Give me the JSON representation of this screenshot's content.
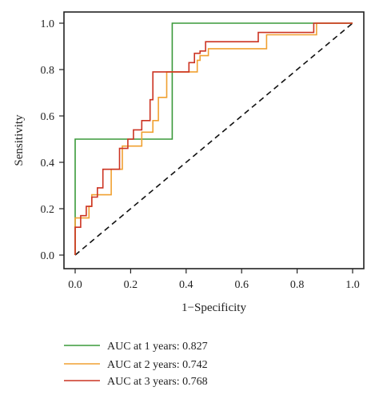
{
  "chart_data": {
    "type": "line",
    "title": "",
    "xlabel": "1−Specificity",
    "ylabel": "Sensitivity",
    "xlim": [
      0.0,
      1.0
    ],
    "ylim": [
      0.0,
      1.0
    ],
    "x_ticks": [
      "0.0",
      "0.2",
      "0.4",
      "0.6",
      "0.8",
      "1.0"
    ],
    "y_ticks": [
      "0.0",
      "0.2",
      "0.4",
      "0.6",
      "0.8",
      "1.0"
    ],
    "grid": false,
    "legend_position": "bottom",
    "reference_line": {
      "style": "dashed",
      "color": "#111111",
      "from": [
        0,
        0
      ],
      "to": [
        1,
        1
      ]
    },
    "series": [
      {
        "name": "AUC at 1 years: 0.827",
        "color": "#3a9a3a",
        "x": [
          0.0,
          0.0,
          0.35,
          0.35,
          1.0
        ],
        "y": [
          0.0,
          0.5,
          0.5,
          1.0,
          1.0
        ]
      },
      {
        "name": "AUC at 2 years: 0.742",
        "color": "#f0a030",
        "x": [
          0.0,
          0.0,
          0.05,
          0.05,
          0.06,
          0.06,
          0.13,
          0.13,
          0.17,
          0.17,
          0.24,
          0.24,
          0.28,
          0.28,
          0.3,
          0.3,
          0.33,
          0.33,
          0.44,
          0.44,
          0.45,
          0.45,
          0.48,
          0.48,
          0.69,
          0.69,
          0.87,
          0.87,
          1.0
        ],
        "y": [
          0.0,
          0.16,
          0.16,
          0.21,
          0.21,
          0.26,
          0.26,
          0.37,
          0.37,
          0.47,
          0.47,
          0.53,
          0.53,
          0.58,
          0.58,
          0.68,
          0.68,
          0.79,
          0.79,
          0.84,
          0.84,
          0.86,
          0.86,
          0.89,
          0.89,
          0.95,
          0.95,
          1.0,
          1.0
        ]
      },
      {
        "name": "AUC at 3 years: 0.768",
        "color": "#cc3322",
        "x": [
          0.0,
          0.0,
          0.02,
          0.02,
          0.04,
          0.04,
          0.06,
          0.06,
          0.08,
          0.08,
          0.1,
          0.1,
          0.16,
          0.16,
          0.19,
          0.19,
          0.21,
          0.21,
          0.24,
          0.24,
          0.27,
          0.27,
          0.28,
          0.28,
          0.41,
          0.41,
          0.43,
          0.43,
          0.45,
          0.45,
          0.47,
          0.47,
          0.66,
          0.66,
          0.86,
          0.86,
          1.0
        ],
        "y": [
          0.0,
          0.12,
          0.12,
          0.17,
          0.17,
          0.21,
          0.21,
          0.25,
          0.25,
          0.29,
          0.29,
          0.37,
          0.37,
          0.46,
          0.46,
          0.5,
          0.5,
          0.54,
          0.54,
          0.58,
          0.58,
          0.67,
          0.67,
          0.79,
          0.79,
          0.83,
          0.83,
          0.87,
          0.87,
          0.88,
          0.88,
          0.92,
          0.92,
          0.96,
          0.96,
          1.0,
          1.0
        ]
      }
    ]
  }
}
